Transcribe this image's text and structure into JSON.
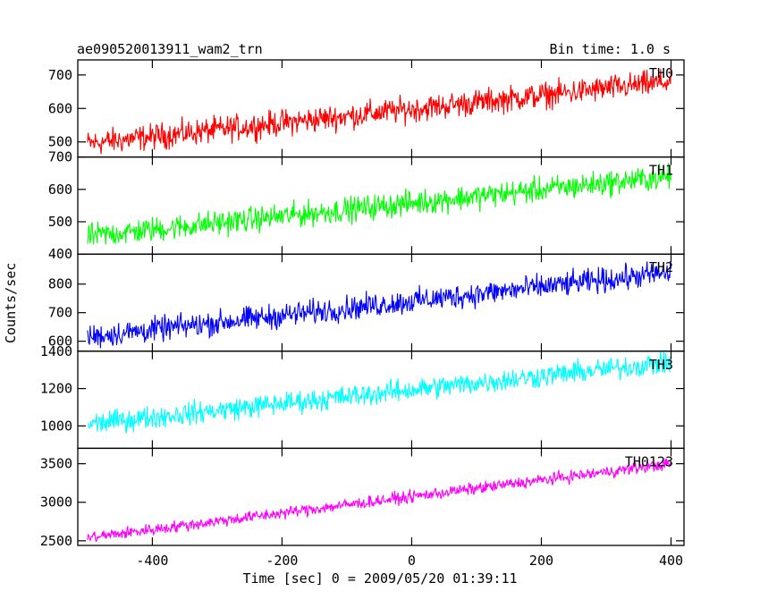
{
  "chart_data": {
    "type": "line",
    "title_left": "ae090520013911_wam2_trn",
    "title_right": "Bin time: 1.0 s",
    "xlabel": "Time [sec] 0 = 2009/05/20 01:39:11",
    "ylabel": "Counts/sec",
    "xlim": [
      -515,
      420
    ],
    "xticks": [
      -400,
      -200,
      0,
      200,
      400
    ],
    "x_start": -500,
    "x_end": 400,
    "x_step": 1,
    "panels": [
      {
        "name": "TH0",
        "color": "#ff0000",
        "ylim": [
          455,
          745
        ],
        "yticks": [
          500,
          600,
          700
        ],
        "trend": [
          {
            "x": -500,
            "y": 495
          },
          {
            "x": 400,
            "y": 680
          }
        ],
        "noise_amplitude": 45
      },
      {
        "name": "TH1",
        "color": "#00ff00",
        "ylim": [
          400,
          700
        ],
        "yticks": [
          400,
          500,
          600,
          700
        ],
        "trend": [
          {
            "x": -500,
            "y": 455
          },
          {
            "x": 400,
            "y": 640
          }
        ],
        "noise_amplitude": 45
      },
      {
        "name": "TH2",
        "color": "#0000ff",
        "ylim": [
          565,
          905
        ],
        "yticks": [
          600,
          700,
          800
        ],
        "trend": [
          {
            "x": -500,
            "y": 615
          },
          {
            "x": 400,
            "y": 840
          }
        ],
        "noise_amplitude": 50
      },
      {
        "name": "TH3",
        "color": "#00ffff",
        "ylim": [
          880,
          1400
        ],
        "yticks": [
          1000,
          1200,
          1400
        ],
        "trend": [
          {
            "x": -500,
            "y": 1010
          },
          {
            "x": 400,
            "y": 1340
          }
        ],
        "noise_amplitude": 70
      },
      {
        "name": "TH0123",
        "color": "#ff00ff",
        "ylim": [
          2440,
          3700
        ],
        "yticks": [
          2500,
          3000,
          3500
        ],
        "trend": [
          {
            "x": -500,
            "y": 2540
          },
          {
            "x": 400,
            "y": 3500
          }
        ],
        "noise_amplitude": 90
      }
    ]
  }
}
